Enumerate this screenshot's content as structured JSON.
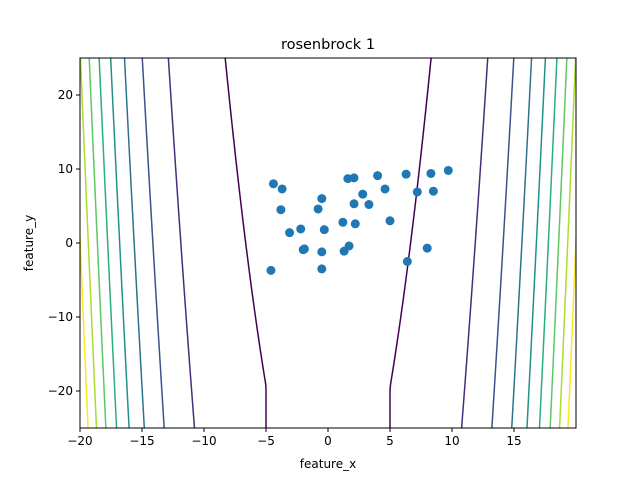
{
  "chart_data": {
    "type": "scatter",
    "title": "rosenbrock 1",
    "xlabel": "feature_x",
    "ylabel": "feature_y",
    "xlim": [
      -20,
      20
    ],
    "ylim": [
      -25,
      25
    ],
    "xticks": [
      -20,
      -15,
      -10,
      -5,
      0,
      5,
      10,
      15
    ],
    "yticks": [
      -20,
      -10,
      0,
      10,
      20
    ],
    "xtick_labels": [
      "−20",
      "−15",
      "−10",
      "−5",
      "0",
      "5",
      "10",
      "15"
    ],
    "ytick_labels": [
      "−20",
      "−10",
      "0",
      "10",
      "20"
    ],
    "grid": false,
    "legend": "none",
    "point_color": "#1f77b4",
    "contour": {
      "function": "rosenbrock",
      "a": 1,
      "b": 1,
      "levels": [
        2000,
        20000,
        40000,
        60000,
        80000,
        100000,
        120000,
        140000,
        160000
      ],
      "colors": [
        "#440154",
        "#472d7b",
        "#3b528b",
        "#2c728e",
        "#21918c",
        "#28ae80",
        "#5ec962",
        "#addc30",
        "#fde725"
      ]
    },
    "points": [
      {
        "x": -4.4,
        "y": 8.0
      },
      {
        "x": -3.7,
        "y": 7.3
      },
      {
        "x": -3.8,
        "y": 4.5
      },
      {
        "x": -3.1,
        "y": 1.4
      },
      {
        "x": -2.2,
        "y": 1.9
      },
      {
        "x": -2.0,
        "y": -0.9
      },
      {
        "x": -1.9,
        "y": -0.8
      },
      {
        "x": -0.8,
        "y": 4.6
      },
      {
        "x": -0.5,
        "y": 6.0
      },
      {
        "x": -0.3,
        "y": 1.8
      },
      {
        "x": -0.5,
        "y": -1.2
      },
      {
        "x": -0.5,
        "y": -3.5
      },
      {
        "x": -4.6,
        "y": -3.7
      },
      {
        "x": 1.2,
        "y": 2.8
      },
      {
        "x": 1.6,
        "y": 8.7
      },
      {
        "x": 2.1,
        "y": 8.8
      },
      {
        "x": 2.1,
        "y": 5.3
      },
      {
        "x": 2.2,
        "y": 2.6
      },
      {
        "x": 1.7,
        "y": -0.4
      },
      {
        "x": 1.3,
        "y": -1.1
      },
      {
        "x": 2.8,
        "y": 6.6
      },
      {
        "x": 3.3,
        "y": 5.2
      },
      {
        "x": 4.0,
        "y": 9.1
      },
      {
        "x": 4.6,
        "y": 7.3
      },
      {
        "x": 5.0,
        "y": 3.0
      },
      {
        "x": 6.3,
        "y": 9.3
      },
      {
        "x": 6.4,
        "y": -2.5
      },
      {
        "x": 7.2,
        "y": 6.9
      },
      {
        "x": 8.0,
        "y": -0.7
      },
      {
        "x": 8.3,
        "y": 9.4
      },
      {
        "x": 8.5,
        "y": 7.0
      },
      {
        "x": 9.7,
        "y": 9.8
      }
    ]
  }
}
